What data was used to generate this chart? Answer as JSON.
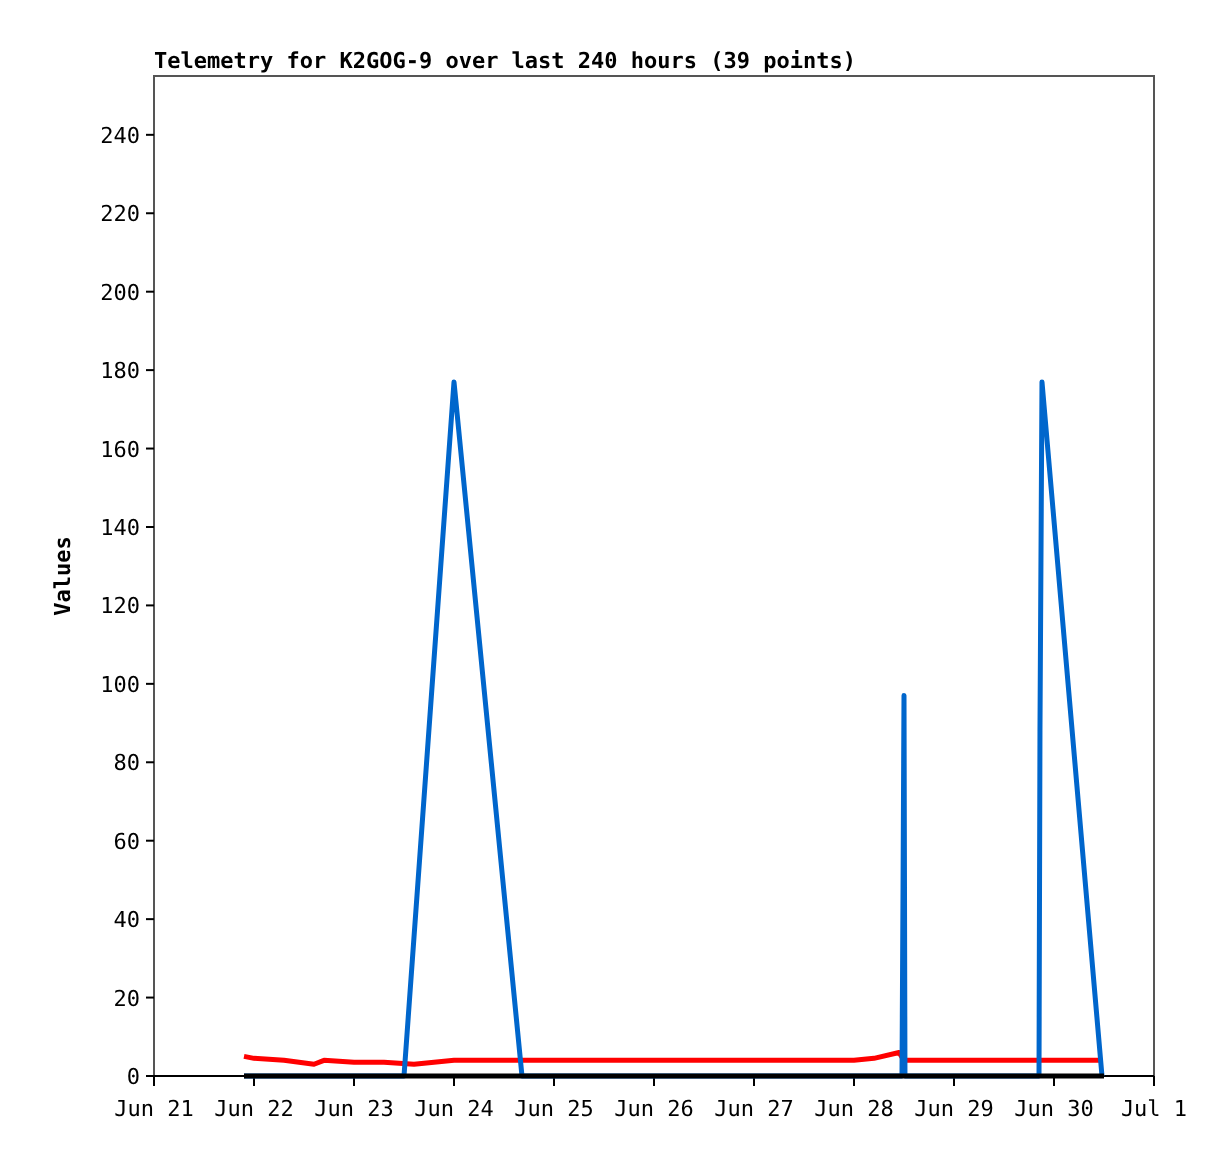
{
  "chart_data": {
    "type": "line",
    "title": "Telemetry for K2GOG-9 over last 240 hours (39 points)",
    "ylabel": "Values",
    "xlim": [
      "--06-21",
      "--07-01"
    ],
    "xticks": [
      {
        "value": "--06-21",
        "label": "Jun 21"
      },
      {
        "value": "--06-22",
        "label": "Jun 22"
      },
      {
        "value": "--06-23",
        "label": "Jun 23"
      },
      {
        "value": "--06-24",
        "label": "Jun 24"
      },
      {
        "value": "--06-25",
        "label": "Jun 25"
      },
      {
        "value": "--06-26",
        "label": "Jun 26"
      },
      {
        "value": "--06-27",
        "label": "Jun 27"
      },
      {
        "value": "--06-28",
        "label": "Jun 28"
      },
      {
        "value": "--06-29",
        "label": "Jun 29"
      },
      {
        "value": "--06-30",
        "label": "Jun 30"
      },
      {
        "value": "--07-01",
        "label": "Jul 1"
      }
    ],
    "ylim": [
      0,
      255
    ],
    "yticks": [
      0,
      20,
      40,
      60,
      80,
      100,
      120,
      140,
      160,
      180,
      200,
      220,
      240
    ],
    "grid": false,
    "series": [
      {
        "color": "#ff0000",
        "x": [
          "--06-21T21:36",
          "--06-22",
          "--06-22T07:12",
          "--06-22T14:24",
          "--06-22T16:48",
          "--06-23",
          "--06-23T07:12",
          "--06-23T14:24",
          "--06-23T19:12",
          "--06-24",
          "--06-24T12:00",
          "--06-25",
          "--06-26",
          "--06-27",
          "--06-28",
          "--06-28T04:48",
          "--06-28T10:48",
          "--06-28T12:00",
          "--06-29",
          "--06-29T20:38",
          "--06-30",
          "--06-30T11:31"
        ],
        "values": [
          5,
          4.5,
          4,
          3,
          4,
          3.5,
          3.5,
          3,
          3.5,
          4,
          4,
          4,
          4,
          4,
          4,
          4.5,
          6,
          4,
          4,
          4,
          4,
          4
        ]
      },
      {
        "color": "#0066cc",
        "x": [
          "--06-21T21:36",
          "--06-23T12:00",
          "--06-24",
          "--06-24T16:19",
          "--06-28T11:31",
          "--06-28T11:46",
          "--06-28T12:00",
          "--06-28T12:14",
          "--06-29T20:24",
          "--06-29T20:38",
          "--06-29T21:07",
          "--06-30T11:31"
        ],
        "values": [
          0,
          0,
          177,
          0,
          0,
          48,
          97,
          0,
          0,
          88,
          177,
          0
        ]
      },
      {
        "color": "#000000",
        "x": [
          "--06-21T21:36",
          "--06-30T12:00"
        ],
        "values": [
          0,
          0
        ]
      }
    ]
  }
}
